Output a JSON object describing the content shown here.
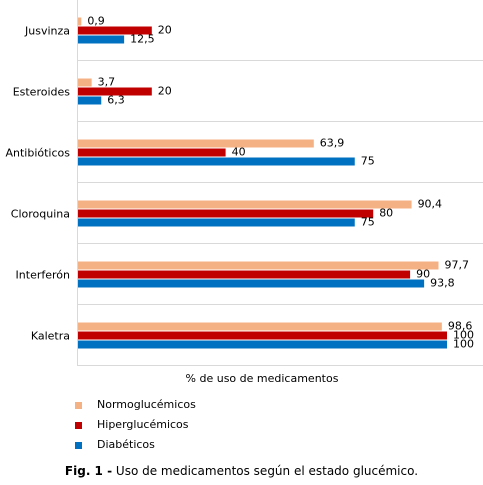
{
  "chart_data": {
    "type": "bar",
    "orientation": "horizontal",
    "categories": [
      "Jusvinza",
      "Esteroides",
      "Antibióticos",
      "Cloroquina",
      "Interferón",
      "Kaletra"
    ],
    "series": [
      {
        "name": "Normoglucémicos",
        "color": "#F4B183",
        "values": [
          0.9,
          3.7,
          63.9,
          90.4,
          97.7,
          98.6
        ],
        "labels": [
          "0,9",
          "3,7",
          "63,9",
          "90,4",
          "97,7",
          "98,6"
        ]
      },
      {
        "name": "Hiperglucémicos",
        "color": "#C00000",
        "values": [
          20,
          20,
          40,
          80,
          90,
          100
        ],
        "labels": [
          "20",
          "20",
          "40",
          "80",
          "90",
          "100"
        ]
      },
      {
        "name": "Diabéticos",
        "color": "#0070C0",
        "values": [
          12.5,
          6.3,
          75,
          75,
          93.8,
          100
        ],
        "labels": [
          "12,5",
          "6,3",
          "75",
          "75",
          "93,8",
          "100"
        ]
      }
    ],
    "xlabel": "% de uso de medicamentos",
    "xlim": [
      0,
      100
    ],
    "grid": true,
    "legend_position": "bottom-left"
  },
  "caption": {
    "prefix": "Fig. 1 -",
    "text": "Uso de medicamentos según el estado glucémico."
  }
}
